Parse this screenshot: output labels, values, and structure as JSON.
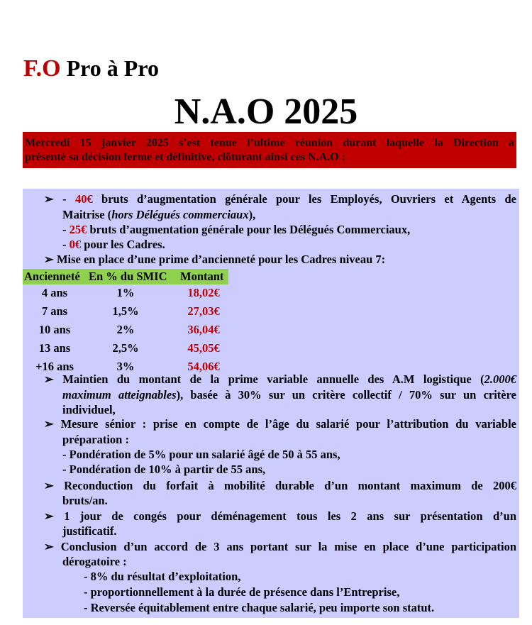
{
  "header": {
    "logo_fo": "F.O",
    "logo_rest": "Pro à Pro",
    "title": "N.A.O 2025"
  },
  "banner": [
    "Mercredi 15 janvier 2025 s’est tenue l’ultime réunion durant laquelle la Direction a",
    "présenté sa décision ferme et définitive, clôturant ainsi ces N.A.O :"
  ],
  "colors": {
    "red": "#c00000",
    "box": "#ccccff",
    "table_header": "#8fd14f"
  },
  "bullet_icon": "➢",
  "augmentations": {
    "l1_pre": "- ",
    "l1_red": "40€",
    "l1_post": " bruts d’augmentation générale pour les Employés, Ouvriers et Agents de",
    "l2_pre": "Maitrise (",
    "l2_it": "hors Délégués commerciaux",
    "l2_post": "),",
    "l3_pre": "- ",
    "l3_red": "25€",
    "l3_post": " bruts d’augmentation générale pour les Délégués Commerciaux,",
    "l4_pre": "- ",
    "l4_red": "0€",
    "l4_post": " pour les Cadres."
  },
  "prime_intro": "Mise en place d’une prime d’ancienneté pour les Cadres niveau 7:",
  "table": {
    "headers": [
      "Ancienneté",
      "En % du SMIC",
      "Montant"
    ],
    "rows": [
      [
        "4 ans",
        "1%",
        "18,02€"
      ],
      [
        "7 ans",
        "1,5%",
        "27,03€"
      ],
      [
        "10 ans",
        "2%",
        "36,04€"
      ],
      [
        "13 ans",
        "2,5%",
        "45,05€"
      ],
      [
        "+16 ans",
        "3%",
        "54,06€"
      ]
    ]
  },
  "variable": {
    "l1_pre": "Maintien du montant de la prime variable annuelle des A.M logistique (",
    "l1_it": "2.000€",
    "l2_it": "maximum atteignables",
    "l2_post": "), basée à 30% sur un critère collectif / 70% sur un critère",
    "l3": "individuel,"
  },
  "senior": [
    "Mesure sénior : prise en compte de l’âge du salarié pour l’attribution du variable",
    "préparation :",
    "- Pondération de 5% pour un salarié âgé de 50 à 55 ans,",
    "- Pondération de 10% à partir de 55 ans,"
  ],
  "mobilite": [
    "Reconduction du forfait à mobilité durable d’un montant maximum de 200€",
    "bruts/an."
  ],
  "conges": [
    "1 jour de congés pour déménagement tous les 2 ans sur présentation d’un",
    "justificatif."
  ],
  "accord": [
    "Conclusion d’un accord de 3 ans portant sur la mise en place d’une participation",
    "dérogatoire :",
    "- 8% du résultat d’exploitation,",
    "- proportionnellement à la durée de présence dans l’Entreprise,",
    "- Reversée équitablement entre chaque salarié, peu importe son statut."
  ]
}
